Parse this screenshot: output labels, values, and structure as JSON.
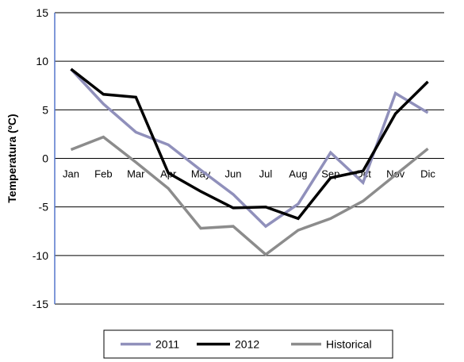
{
  "chart_data": {
    "type": "line",
    "title": "",
    "xlabel": "",
    "ylabel": "Temperatura (ºC)",
    "ylim": [
      -15,
      15
    ],
    "yticks": [
      15,
      10,
      5,
      0,
      -5,
      -10,
      -15
    ],
    "grid": true,
    "legend_position": "bottom",
    "categories": [
      "Jan",
      "Feb",
      "Mar",
      "Apr",
      "May",
      "Jun",
      "Jul",
      "Aug",
      "Sep",
      "Oct",
      "Nov",
      "Dic"
    ],
    "series": [
      {
        "name": "2011",
        "color": "#9090bb",
        "values": [
          9.2,
          5.6,
          2.7,
          1.4,
          -1.2,
          -3.7,
          -7.0,
          -4.7,
          0.6,
          -2.5,
          6.7,
          4.7
        ]
      },
      {
        "name": "2012",
        "color": "#000000",
        "values": [
          9.2,
          6.6,
          6.3,
          -1.5,
          -3.4,
          -5.1,
          -5.0,
          -6.2,
          -2.0,
          -1.3,
          4.6,
          7.9
        ]
      },
      {
        "name": "Historical",
        "color": "#8c8c8c",
        "values": [
          0.9,
          2.2,
          -0.4,
          -3.1,
          -7.2,
          -7.0,
          -9.9,
          -7.4,
          -6.2,
          -4.4,
          -1.7,
          1.0
        ]
      }
    ]
  }
}
